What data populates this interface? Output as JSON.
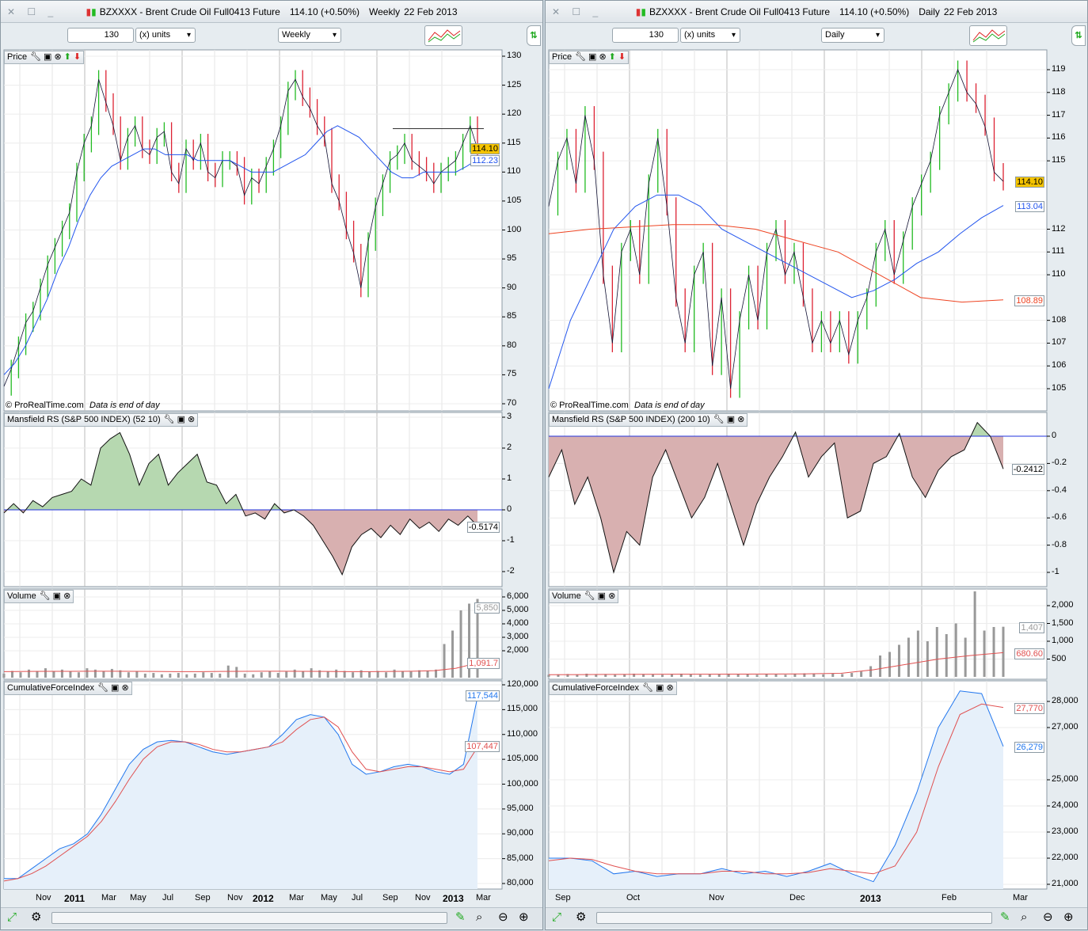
{
  "colors": {
    "up": "#22bb22",
    "down": "#dd2233",
    "ma_blue": "#2255ee",
    "ma_red": "#ee4422",
    "pos_fill": "#b6d8b0",
    "neg_fill": "#d8b0b0",
    "cfi_fill": "#e6f0fa",
    "volume": "#999999"
  },
  "left": {
    "title": "BZXXXX - Brent Crude Oil Full0413 Future",
    "quote": "114.10 (+0.50%)",
    "period": "Weekly",
    "date": "22 Feb 2013",
    "units_value": "130",
    "units_label": "(x) units",
    "timeframe": "Weekly",
    "price": {
      "label": "Price",
      "credit": "© ProRealTime.com",
      "credit_note": "Data is end of day",
      "axis": [
        "130",
        "125",
        "120",
        "115",
        "110",
        "105",
        "100",
        "95",
        "90",
        "85",
        "80",
        "75",
        "70"
      ],
      "last": "114.10",
      "ma": "112.23",
      "ylim": [
        70,
        130
      ],
      "closes": [
        73,
        76,
        80,
        84,
        86,
        90,
        94,
        97,
        100,
        103,
        110,
        115,
        118,
        126,
        122,
        118,
        112,
        116,
        118,
        114,
        113,
        116,
        117,
        110,
        108,
        114,
        112,
        115,
        110,
        109,
        112,
        112,
        111,
        106,
        109,
        108,
        111,
        114,
        118,
        124,
        126,
        123,
        121,
        118,
        116,
        108,
        105,
        100,
        96,
        90,
        98,
        104,
        108,
        112,
        113,
        115,
        112,
        111,
        110,
        108,
        110,
        111,
        112,
        115,
        118,
        114
      ],
      "ma_values": [
        75,
        77,
        80,
        84,
        88,
        93,
        97,
        102,
        106,
        109,
        111,
        112,
        113,
        114,
        114,
        113,
        113,
        113,
        112,
        112,
        112,
        112,
        111,
        110,
        110,
        110,
        111,
        112,
        113,
        115,
        117,
        118,
        117,
        116,
        114,
        112,
        110,
        109,
        109,
        110,
        110,
        110,
        110,
        111,
        112.2
      ],
      "resistance": 117.5
    },
    "mansfield": {
      "label": "Mansfield RS (S&P 500 INDEX) (52 10)",
      "axis": [
        "3",
        "2",
        "1",
        "0",
        "-1",
        "-2"
      ],
      "last": "-0.5174",
      "ylim": [
        -2.3,
        3
      ],
      "values": [
        -0.1,
        0.2,
        -0.1,
        0.3,
        0.1,
        0.4,
        0.5,
        0.6,
        1,
        0.8,
        2,
        2.3,
        2.5,
        1.8,
        0.8,
        1.5,
        1.8,
        0.8,
        1.2,
        1.5,
        1.8,
        0.9,
        0.8,
        0.2,
        0.5,
        -0.2,
        -0.1,
        -0.3,
        0.2,
        -0.1,
        0,
        -0.2,
        -0.5,
        -1,
        -1.5,
        -2.1,
        -1.2,
        -0.8,
        -0.6,
        -0.9,
        -0.5,
        -0.8,
        -0.3,
        -0.6,
        -0.4,
        -0.7,
        -0.3,
        -0.5,
        -0.2,
        -0.52
      ]
    },
    "volume": {
      "label": "Volume",
      "axis": [
        "5,000",
        "4,000",
        "3,000",
        "2,000"
      ],
      "axis_top": "6,000",
      "last": "5,850",
      "avg": "1,091.7",
      "ylim": [
        0,
        6600
      ],
      "values": [
        300,
        500,
        400,
        600,
        500,
        700,
        450,
        600,
        500,
        400,
        700,
        600,
        500,
        650,
        550,
        400,
        500,
        300,
        350,
        250,
        300,
        350,
        250,
        300,
        400,
        350,
        300,
        900,
        800,
        300,
        250,
        400,
        500,
        350,
        450,
        600,
        500,
        700,
        550,
        450,
        600,
        500,
        400,
        550,
        450,
        500,
        400,
        600,
        500,
        450,
        550,
        500,
        600,
        2500,
        3500,
        5000,
        5500,
        5850
      ],
      "avg_values": [
        450,
        460,
        470,
        470,
        480,
        480,
        470,
        460,
        450,
        450,
        460,
        470,
        480,
        480,
        470,
        460,
        450,
        450,
        460,
        480,
        520,
        700,
        1091.7
      ]
    },
    "cfi": {
      "label": "CumulativeForceIndex",
      "axis": [
        "120,000",
        "115,000",
        "110,000",
        "105,000",
        "100,000",
        "95,000",
        "90,000",
        "85,000",
        "80,000"
      ],
      "last": "117,544",
      "signal": "107,447",
      "ylim": [
        79500,
        121000
      ],
      "values": [
        81000,
        81000,
        83000,
        85000,
        87000,
        88000,
        90000,
        94000,
        99000,
        104000,
        107000,
        108500,
        108800,
        108500,
        107500,
        106500,
        106000,
        106500,
        107000,
        107500,
        110000,
        113000,
        114000,
        113500,
        110000,
        104000,
        102000,
        102500,
        103500,
        104000,
        103500,
        102500,
        102000,
        104000,
        117544
      ],
      "signal_values": [
        80500,
        81000,
        82000,
        83500,
        85500,
        87500,
        89500,
        92500,
        96500,
        101000,
        105000,
        107500,
        108500,
        108500,
        108000,
        107000,
        106500,
        106500,
        107000,
        107500,
        108500,
        111000,
        113000,
        113500,
        111500,
        106500,
        103000,
        102500,
        103000,
        103500,
        103500,
        103000,
        102500,
        103000,
        107447
      ]
    },
    "xaxis": [
      "Nov",
      "2011",
      "Mar",
      "May",
      "Jul",
      "Sep",
      "Nov",
      "2012",
      "Mar",
      "May",
      "Jul",
      "Sep",
      "Nov",
      "2013",
      "Mar"
    ]
  },
  "right": {
    "title": "BZXXXX - Brent Crude Oil Full0413 Future",
    "quote": "114.10 (+0.50%)",
    "period": "Daily",
    "date": "22 Feb 2013",
    "units_value": "130",
    "units_label": "(x) units",
    "timeframe": "Daily",
    "price": {
      "label": "Price",
      "credit": "© ProRealTime.com",
      "credit_note": "Data is end of day",
      "axis": [
        "119",
        "118",
        "117",
        "116",
        "115",
        "112",
        "111",
        "110",
        "108",
        "107",
        "106",
        "105"
      ],
      "axis_vals": [
        119,
        118,
        117,
        116,
        115,
        112,
        111,
        110,
        108,
        107,
        106,
        105
      ],
      "last": "114.10",
      "ma_blue": "113.04",
      "ma_red": "108.89",
      "ylim": [
        104.2,
        120
      ],
      "closes": [
        113,
        115,
        116,
        114,
        117,
        115,
        110,
        107,
        111,
        112,
        110,
        114,
        116,
        113,
        109,
        107,
        110,
        111,
        106,
        109,
        105,
        108,
        110,
        108,
        111,
        112,
        110,
        111,
        109,
        107,
        108,
        107,
        108,
        106.5,
        108,
        109,
        111,
        112,
        110,
        111.5,
        113,
        114,
        115,
        117,
        118,
        119,
        118,
        117.5,
        116.5,
        114.5,
        114.1
      ],
      "ma_blue_values": [
        105,
        108,
        110,
        112,
        113,
        113.5,
        113.5,
        113,
        112,
        111.5,
        111,
        110.5,
        110,
        109.5,
        109,
        109.3,
        109.8,
        110.5,
        111,
        111.8,
        112.5,
        113.04
      ],
      "ma_red_values": [
        111.8,
        112,
        112.1,
        112.2,
        112.2,
        112,
        111.5,
        111,
        110,
        109,
        108.8,
        108.9
      ]
    },
    "mansfield": {
      "label": "Mansfield RS (S&P 500 INDEX) (200 10)",
      "axis": [
        "0",
        "-0.2",
        "-0.4",
        "-0.6",
        "-0.8",
        "-1"
      ],
      "axis_vals": [
        0,
        -0.2,
        -0.4,
        -0.6,
        -0.8,
        -1
      ],
      "last": "-0.2412",
      "ylim": [
        -1.1,
        0.17
      ],
      "values": [
        -0.3,
        -0.1,
        -0.5,
        -0.3,
        -0.6,
        -1,
        -0.7,
        -0.8,
        -0.3,
        -0.1,
        -0.35,
        -0.6,
        -0.45,
        -0.2,
        -0.5,
        -0.8,
        -0.5,
        -0.3,
        -0.15,
        0.03,
        -0.3,
        -0.15,
        -0.05,
        -0.6,
        -0.55,
        -0.2,
        -0.15,
        0.02,
        -0.3,
        -0.45,
        -0.25,
        -0.15,
        -0.1,
        0.1,
        0,
        -0.24
      ]
    },
    "volume": {
      "label": "Volume",
      "axis": [
        "2,000",
        "1,500",
        "1,000",
        "500"
      ],
      "last": "1,407",
      "avg": "680.60",
      "ylim": [
        0,
        2450
      ],
      "values": [
        60,
        70,
        80,
        60,
        90,
        70,
        80,
        60,
        70,
        90,
        80,
        70,
        60,
        80,
        90,
        70,
        60,
        80,
        70,
        90,
        80,
        70,
        60,
        80,
        70,
        60,
        90,
        100,
        80,
        70,
        90,
        80,
        110,
        150,
        300,
        600,
        700,
        900,
        1100,
        1300,
        1000,
        1400,
        1200,
        1500,
        1100,
        2400,
        1300,
        1400,
        1407
      ],
      "avg_values": [
        60,
        65,
        70,
        72,
        75,
        75,
        78,
        80,
        85,
        100,
        200,
        350,
        500,
        600,
        680.6
      ]
    },
    "cfi": {
      "label": "CumulativeForceIndex",
      "axis": [
        "28,000",
        "27,000",
        "25,000",
        "24,000",
        "23,000",
        "22,000",
        "21,000"
      ],
      "axis_vals": [
        28000,
        27000,
        25000,
        24000,
        23000,
        22000,
        21000
      ],
      "last": "26,279",
      "signal": "27,770",
      "ylim": [
        20900,
        29500
      ],
      "values": [
        22000,
        22000,
        21900,
        21400,
        21500,
        21300,
        21400,
        21400,
        21600,
        21400,
        21500,
        21300,
        21500,
        21800,
        21400,
        21100,
        22500,
        24500,
        27000,
        28400,
        28300,
        26279
      ],
      "signal_values": [
        21900,
        22000,
        21950,
        21700,
        21500,
        21400,
        21400,
        21400,
        21500,
        21500,
        21400,
        21400,
        21450,
        21600,
        21500,
        21400,
        21700,
        23000,
        25500,
        27500,
        27900,
        27770
      ]
    },
    "xaxis": [
      "Sep",
      "Oct",
      "Nov",
      "Dec",
      "2013",
      "Feb",
      "Mar"
    ]
  }
}
